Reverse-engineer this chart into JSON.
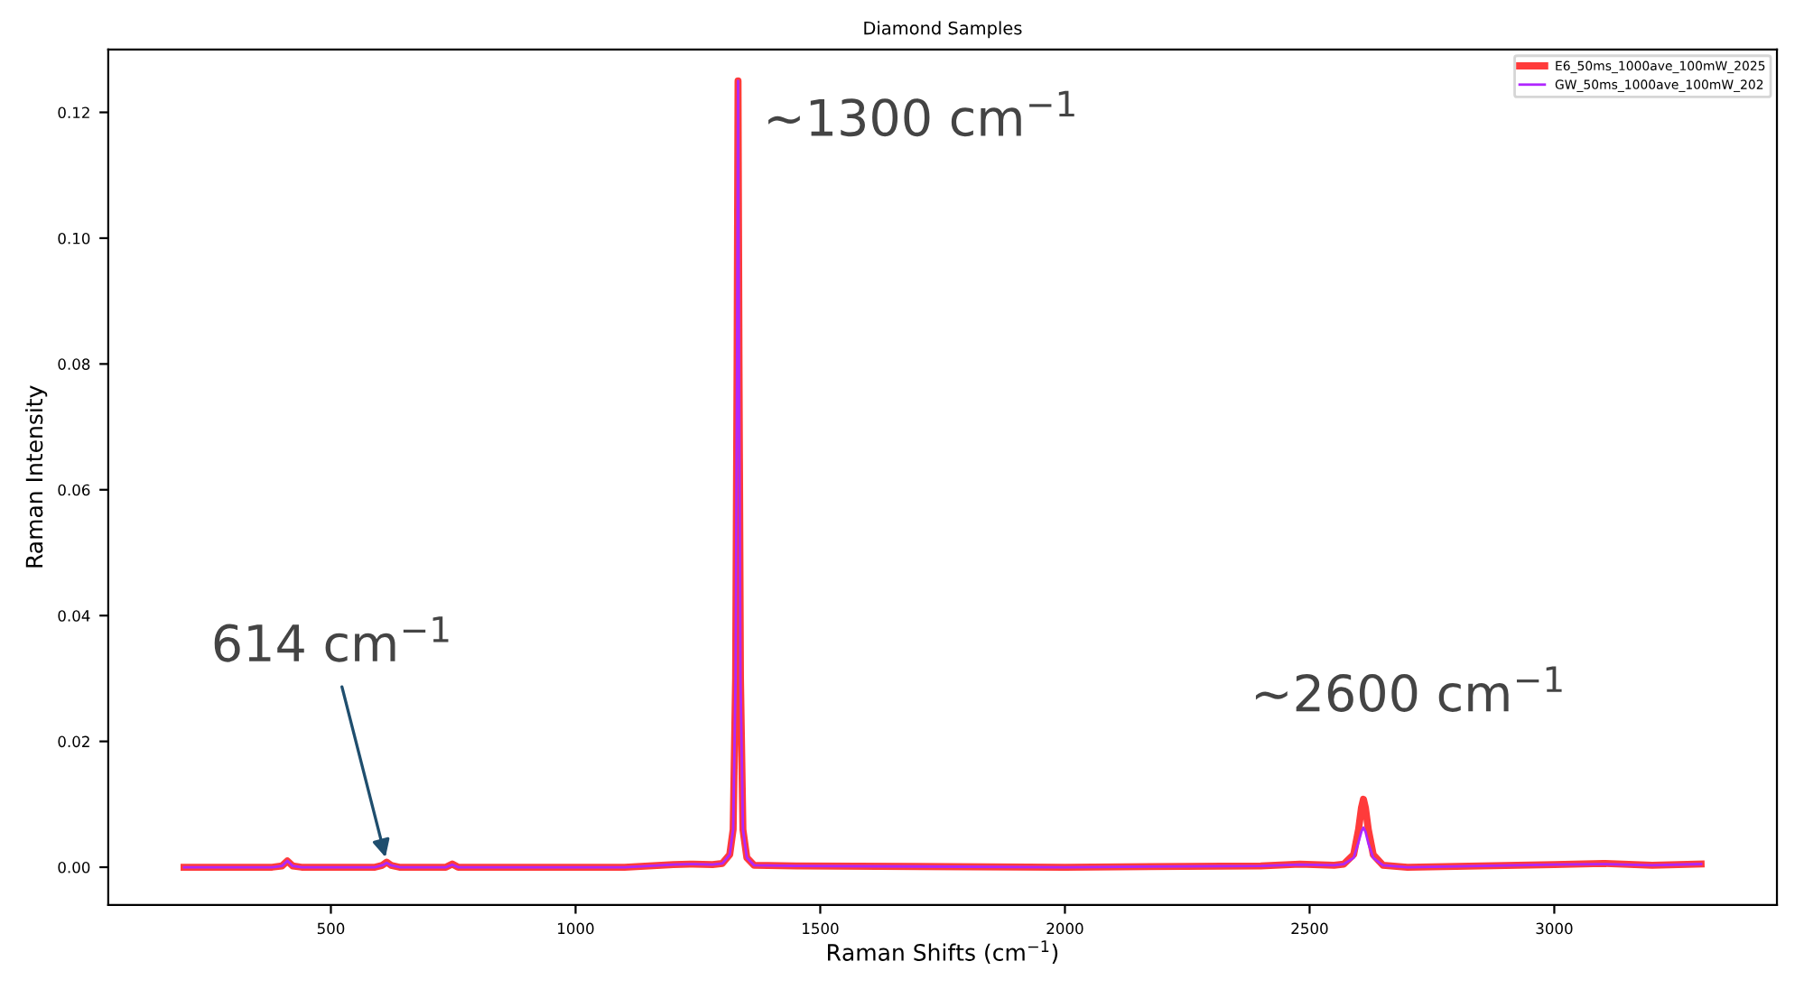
{
  "chart_data": {
    "type": "line",
    "title": "Diamond Samples",
    "xlabel": "Raman Shifts (cm$^{−1}$)",
    "ylabel": "Raman Intensity",
    "xlim": [
      45,
      3455
    ],
    "ylim": [
      -0.006,
      0.13
    ],
    "xticks": [
      500,
      1000,
      1500,
      2000,
      2500,
      3000
    ],
    "yticks": [
      {
        "value": 0,
        "label": "0.00"
      },
      {
        "value": 0.02,
        "label": "0.02"
      },
      {
        "value": 0.04,
        "label": "0.04"
      },
      {
        "value": 0.06,
        "label": "0.06"
      },
      {
        "value": 0.08,
        "label": "0.08"
      },
      {
        "value": 0.1,
        "label": "0.10"
      },
      {
        "value": 0.12,
        "label": "0.12"
      }
    ],
    "grid": false,
    "legend": "top right",
    "marker": "none",
    "line_style": "solid",
    "annotations": [
      {
        "text": "~1300 cm$^{−1}$",
        "x": 1332,
        "y": 0.125
      },
      {
        "text": "614 cm$^{−1}$",
        "x": 614,
        "y": 0.0008
      },
      {
        "text": "~2600 cm$^{−1}$",
        "x": 2610,
        "y": 0.0108
      }
    ],
    "series": [
      {
        "name": "E6_50ms_1000ave_100mW_2025",
        "color": "#ff3b3b",
        "x": [
          200,
          380,
          400,
          411,
          422,
          440,
          590,
          605,
          614,
          623,
          640,
          735,
          748,
          760,
          1100,
          1200,
          1240,
          1280,
          1300,
          1315,
          1322,
          1327,
          1330,
          1332,
          1334,
          1337,
          1342,
          1350,
          1365,
          1450,
          2000,
          2400,
          2480,
          2550,
          2570,
          2590,
          2600,
          2606,
          2610,
          2614,
          2620,
          2630,
          2650,
          2700,
          3000,
          3100,
          3200,
          3300
        ],
        "values": [
          0,
          0,
          0.0002,
          0.001,
          0.0002,
          0,
          0,
          0.0003,
          0.0008,
          0.0003,
          0,
          0,
          0.0005,
          0,
          0,
          0.0004,
          0.0005,
          0.0004,
          0.0006,
          0.002,
          0.006,
          0.03,
          0.08,
          0.125,
          0.08,
          0.03,
          0.006,
          0.0015,
          0.0003,
          0.0002,
          0,
          0.0002,
          0.0005,
          0.0003,
          0.0005,
          0.002,
          0.006,
          0.0095,
          0.0108,
          0.0095,
          0.006,
          0.002,
          0.0003,
          0,
          0.0004,
          0.0006,
          0.0003,
          0.0005
        ]
      },
      {
        "name": "GW_50ms_1000ave_100mW_202",
        "color": "#b026ff",
        "x": [
          200,
          380,
          400,
          411,
          422,
          440,
          590,
          605,
          614,
          623,
          640,
          735,
          748,
          760,
          1100,
          1200,
          1240,
          1280,
          1300,
          1315,
          1322,
          1327,
          1330,
          1332,
          1334,
          1337,
          1342,
          1350,
          1365,
          1450,
          2000,
          2400,
          2480,
          2550,
          2570,
          2590,
          2600,
          2606,
          2610,
          2614,
          2620,
          2630,
          2650,
          2700,
          3000,
          3100,
          3200,
          3300
        ],
        "values": [
          0,
          0,
          0.0002,
          0.001,
          0.0002,
          0,
          0,
          0.0003,
          0.0007,
          0.0003,
          0,
          0,
          0.0004,
          0,
          0,
          0.0004,
          0.0005,
          0.0004,
          0.0006,
          0.002,
          0.006,
          0.03,
          0.08,
          0.125,
          0.08,
          0.03,
          0.006,
          0.0015,
          0.0003,
          0.0002,
          0,
          0.0002,
          0.0004,
          0.0003,
          0.0005,
          0.0015,
          0.004,
          0.0057,
          0.0063,
          0.0057,
          0.0038,
          0.0015,
          0.0003,
          0,
          0.0004,
          0.0005,
          0.0003,
          0.0005
        ]
      }
    ]
  }
}
